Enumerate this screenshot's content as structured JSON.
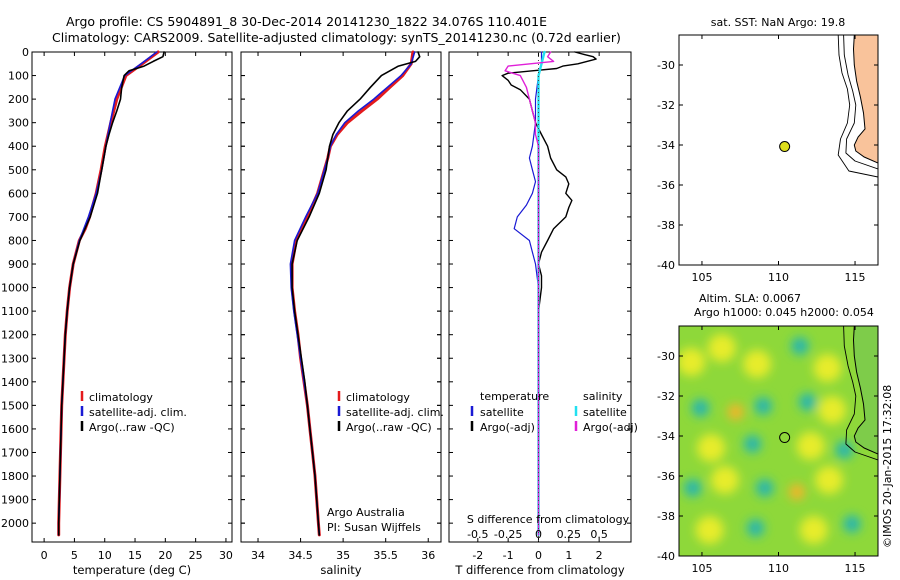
{
  "figure": {
    "title_line1": "Argo profile: CS 5904891_8 30-Dec-2014 20141230_1822 34.076S 110.401E",
    "title_line2": "Climatology: CARS2009. Satellite-adjusted climatology: synTS_20141230.nc (0.72d earlier)",
    "watermark": "©IMOS 20-Jan-2015 17:32:08",
    "ocean_color": "#ffffff",
    "land_color": "#f9c39b"
  },
  "chart_data": [
    {
      "id": "temperature",
      "type": "line",
      "xlabel": "temperature (deg C)",
      "ylabel": "",
      "xlim": [
        -2,
        31
      ],
      "ylim": [
        2080,
        0
      ],
      "xticks": [
        0,
        5,
        10,
        15,
        20,
        25,
        30
      ],
      "yticks": [
        0,
        100,
        200,
        300,
        400,
        500,
        600,
        700,
        800,
        900,
        1000,
        1100,
        1200,
        1300,
        1400,
        1500,
        1600,
        1700,
        1800,
        1900,
        2000
      ],
      "legend": [
        "climatology",
        "satellite-adj. clim.",
        "Argo(..raw -QC)"
      ],
      "series": [
        {
          "name": "climatology",
          "color": "#e41a1c",
          "width": 3,
          "depth": [
            0,
            50,
            100,
            200,
            300,
            400,
            500,
            600,
            700,
            750,
            800,
            900,
            1000,
            1100,
            1200,
            1300,
            1400,
            1500,
            1600,
            1700,
            1800,
            1900,
            2000,
            2050
          ],
          "values": [
            18.8,
            16.2,
            13.5,
            12.0,
            11.0,
            10.1,
            9.4,
            8.6,
            7.5,
            6.8,
            5.8,
            4.8,
            4.2,
            3.8,
            3.5,
            3.3,
            3.1,
            2.9,
            2.8,
            2.7,
            2.6,
            2.5,
            2.4,
            2.4
          ]
        },
        {
          "name": "satellite-adj. clim.",
          "color": "#1a1ad4",
          "width": 1.6,
          "depth": [
            0,
            50,
            100,
            200,
            300,
            400,
            500,
            600,
            700,
            800,
            900,
            1000,
            1100,
            1200,
            1300,
            1400,
            1500,
            1600,
            1700,
            1800,
            1900,
            2000,
            2050
          ],
          "values": [
            18.6,
            16.0,
            13.3,
            11.7,
            10.9,
            10.2,
            9.5,
            8.6,
            7.3,
            5.8,
            4.8,
            4.2,
            3.8,
            3.5,
            3.3,
            3.1,
            2.9,
            2.8,
            2.7,
            2.6,
            2.5,
            2.4,
            2.4
          ]
        },
        {
          "name": "Argo(..raw -QC)",
          "color": "#000000",
          "width": 1.6,
          "depth": [
            0,
            20,
            40,
            60,
            80,
            100,
            150,
            200,
            250,
            300,
            350,
            400,
            500,
            600,
            700,
            800,
            900,
            1000,
            1100,
            1200,
            1300,
            1400,
            1500,
            1600,
            1700,
            1800,
            1900,
            2000,
            2050
          ],
          "values": [
            19.8,
            19.6,
            18.0,
            16.5,
            14.0,
            13.2,
            12.8,
            12.6,
            12.0,
            11.3,
            10.7,
            10.2,
            9.5,
            8.8,
            7.6,
            5.9,
            4.8,
            4.2,
            3.8,
            3.5,
            3.3,
            3.1,
            2.9,
            2.8,
            2.7,
            2.6,
            2.5,
            2.4,
            2.4
          ]
        }
      ]
    },
    {
      "id": "salinity",
      "type": "line",
      "xlabel": "salinity",
      "ylabel": "",
      "xlim": [
        33.8,
        36.15
      ],
      "ylim": [
        2080,
        0
      ],
      "xticks": [
        34,
        34.5,
        35,
        35.5,
        36
      ],
      "yticks": [
        0,
        100,
        200,
        300,
        400,
        500,
        600,
        700,
        800,
        900,
        1000,
        1100,
        1200,
        1300,
        1400,
        1500,
        1600,
        1700,
        1800,
        1900,
        2000
      ],
      "legend": [
        "climatology",
        "satellite-adj. clim.",
        "Argo(..raw -QC)"
      ],
      "annotation": [
        "Argo Australia",
        "PI: Susan Wijffels"
      ],
      "series": [
        {
          "name": "climatology",
          "color": "#e41a1c",
          "width": 3,
          "depth": [
            0,
            50,
            100,
            150,
            200,
            250,
            300,
            350,
            400,
            450,
            500,
            600,
            700,
            800,
            900,
            1000,
            1100,
            1200,
            1300,
            1400,
            1500,
            1600,
            1700,
            1800,
            1900,
            2000,
            2050
          ],
          "values": [
            35.82,
            35.8,
            35.7,
            35.55,
            35.4,
            35.22,
            35.05,
            34.93,
            34.85,
            34.82,
            34.78,
            34.7,
            34.58,
            34.45,
            34.4,
            34.4,
            34.43,
            34.47,
            34.5,
            34.54,
            34.58,
            34.61,
            34.64,
            34.67,
            34.69,
            34.71,
            34.72
          ]
        },
        {
          "name": "satellite-adj. clim.",
          "color": "#1a1ad4",
          "width": 1.6,
          "depth": [
            0,
            50,
            100,
            150,
            200,
            250,
            300,
            350,
            400,
            450,
            500,
            600,
            700,
            800,
            900,
            1000,
            1100,
            1200,
            1300,
            1400,
            1500,
            1600,
            1700,
            1800,
            1900,
            2000,
            2050
          ],
          "values": [
            35.84,
            35.8,
            35.68,
            35.52,
            35.36,
            35.18,
            35.02,
            34.92,
            34.85,
            34.82,
            34.78,
            34.7,
            34.56,
            34.43,
            34.38,
            34.39,
            34.42,
            34.46,
            34.5,
            34.54,
            34.58,
            34.61,
            34.64,
            34.67,
            34.69,
            34.71,
            34.72
          ]
        },
        {
          "name": "Argo(..raw -QC)",
          "color": "#000000",
          "width": 1.6,
          "depth": [
            0,
            20,
            40,
            60,
            80,
            100,
            150,
            200,
            250,
            300,
            350,
            400,
            450,
            500,
            600,
            700,
            800,
            900,
            1000,
            1100,
            1200,
            1300,
            1400,
            1500,
            1600,
            1700,
            1800,
            1900,
            2000,
            2050
          ],
          "values": [
            35.88,
            35.9,
            35.85,
            35.65,
            35.55,
            35.45,
            35.32,
            35.2,
            35.05,
            34.95,
            34.88,
            34.84,
            34.82,
            34.8,
            34.72,
            34.6,
            34.46,
            34.4,
            34.4,
            34.43,
            34.47,
            34.51,
            34.55,
            34.58,
            34.61,
            34.64,
            34.67,
            34.69,
            34.71,
            34.72
          ]
        }
      ]
    },
    {
      "id": "differences",
      "type": "line",
      "xlabel": "T difference from climatology",
      "xlabel_top": "S difference from climatology",
      "xlim": [
        -2.95,
        3.05
      ],
      "ylim": [
        2080,
        0
      ],
      "xticks": [
        -2,
        -1,
        0,
        1,
        2
      ],
      "top_tick_labels": [
        "-0.5",
        "-0.25",
        "0",
        "0.25",
        "0.5"
      ],
      "top_tick_positions": [
        -2,
        -1,
        0,
        1,
        2
      ],
      "legend_temperature": {
        "title": "temperature",
        "items": [
          "satellite",
          "Argo(-adj)"
        ]
      },
      "legend_salinity": {
        "title": "salinity",
        "items": [
          "satellite",
          "Argo(-adj)"
        ]
      },
      "series": [
        {
          "name": "T satellite",
          "color": "#1a1ad4",
          "width": 1.2,
          "depth": [
            0,
            50,
            100,
            200,
            300,
            400,
            450,
            500,
            550,
            600,
            650,
            700,
            750,
            800,
            850,
            900,
            1000,
            1200,
            1500,
            2000,
            2050
          ],
          "values": [
            0.1,
            0.1,
            0.0,
            -0.1,
            -0.1,
            -0.2,
            -0.3,
            -0.2,
            -0.1,
            -0.2,
            -0.4,
            -0.7,
            -0.8,
            -0.3,
            -0.2,
            -0.1,
            0.0,
            0.0,
            0.0,
            0.0,
            0.0
          ]
        },
        {
          "name": "T Argo(-adj)",
          "color": "#000000",
          "width": 1.4,
          "depth": [
            0,
            10,
            20,
            30,
            40,
            50,
            60,
            70,
            80,
            90,
            100,
            120,
            140,
            160,
            200,
            250,
            300,
            350,
            400,
            450,
            500,
            530,
            560,
            600,
            630,
            660,
            700,
            750,
            800,
            850,
            900,
            950,
            1000,
            1100,
            1200,
            1400,
            1600,
            1800,
            2000,
            2050
          ],
          "values": [
            1.2,
            1.5,
            1.8,
            1.9,
            1.6,
            1.3,
            0.8,
            0.6,
            -0.2,
            -1.0,
            -1.2,
            -1.0,
            -0.9,
            -0.6,
            -0.3,
            -0.2,
            -0.1,
            0.1,
            0.3,
            0.4,
            0.6,
            0.9,
            1.0,
            0.9,
            1.1,
            1.0,
            0.9,
            0.5,
            0.3,
            0.1,
            0.0,
            0.1,
            0.1,
            0.0,
            0.0,
            0.0,
            0.0,
            0.0,
            0.0,
            0.0
          ]
        },
        {
          "name": "S satellite",
          "color": "#22e0f0",
          "width": 2.4,
          "depth": [
            0,
            50,
            100,
            200,
            300,
            400,
            500,
            600,
            700,
            800,
            900,
            1000,
            1200,
            1500,
            2000,
            2050
          ],
          "values": [
            0.2,
            0.1,
            0.0,
            0.0,
            0.0,
            0.0,
            0.0,
            0.0,
            0.0,
            0.0,
            0.0,
            0.0,
            0.0,
            0.0,
            0.0,
            0.0
          ]
        },
        {
          "name": "S Argo(-adj)",
          "color": "#e020d8",
          "width": 1.4,
          "depth": [
            0,
            20,
            40,
            60,
            80,
            100,
            150,
            200,
            250,
            300,
            350,
            400,
            500,
            600,
            700,
            800,
            900,
            1000,
            1200,
            1400,
            1600,
            1800,
            2000,
            2050
          ],
          "values": [
            0.4,
            0.3,
            0.5,
            -1.0,
            -1.1,
            -0.6,
            -0.4,
            -0.3,
            -0.2,
            -0.1,
            -0.1,
            0.0,
            0.0,
            0.0,
            0.0,
            0.0,
            0.0,
            0.0,
            0.0,
            0.0,
            0.0,
            0.0,
            0.0,
            0.0
          ]
        }
      ]
    },
    {
      "id": "sst_map",
      "type": "scatter",
      "title": "sat. SST: NaN Argo: 19.8",
      "xlim": [
        103.5,
        116.5
      ],
      "ylim": [
        -40,
        -28.5
      ],
      "xticks": [
        105,
        110,
        115
      ],
      "yticks": [
        -40,
        -38,
        -36,
        -34,
        -32,
        -30
      ],
      "marker": {
        "lon": 110.401,
        "lat": -34.076,
        "color": "#dede1c"
      }
    },
    {
      "id": "sla_map",
      "type": "heatmap",
      "title_line1": "Altim. SLA: 0.0067",
      "title_line2": "Argo h1000: 0.045 h2000: 0.054",
      "xlim": [
        103.5,
        116.5
      ],
      "ylim": [
        -40,
        -28.5
      ],
      "xticks": [
        105,
        110,
        115
      ],
      "yticks": [
        -40,
        -38,
        -36,
        -34,
        -32,
        -30
      ],
      "marker": {
        "lon": 110.401,
        "lat": -34.076
      },
      "base_color": "#8ed83a",
      "blobs": [
        {
          "lon": 104.3,
          "lat": -30.3,
          "kind": "yellow"
        },
        {
          "lon": 106.3,
          "lat": -29.6,
          "kind": "yellow"
        },
        {
          "lon": 108.6,
          "lat": -30.4,
          "kind": "yellow"
        },
        {
          "lon": 111.4,
          "lat": -29.5,
          "kind": "cyan"
        },
        {
          "lon": 113.2,
          "lat": -30.6,
          "kind": "yellow"
        },
        {
          "lon": 104.9,
          "lat": -32.6,
          "kind": "cyan"
        },
        {
          "lon": 107.2,
          "lat": -32.8,
          "kind": "orange"
        },
        {
          "lon": 109.0,
          "lat": -32.5,
          "kind": "cyan"
        },
        {
          "lon": 111.9,
          "lat": -32.3,
          "kind": "cyan"
        },
        {
          "lon": 113.5,
          "lat": -32.7,
          "kind": "yellow"
        },
        {
          "lon": 105.6,
          "lat": -34.6,
          "kind": "yellow"
        },
        {
          "lon": 108.3,
          "lat": -34.4,
          "kind": "cyan"
        },
        {
          "lon": 112.1,
          "lat": -34.5,
          "kind": "yellow"
        },
        {
          "lon": 114.3,
          "lat": -34.7,
          "kind": "cyan"
        },
        {
          "lon": 104.4,
          "lat": -36.6,
          "kind": "cyan"
        },
        {
          "lon": 106.5,
          "lat": -36.2,
          "kind": "yellow"
        },
        {
          "lon": 109.1,
          "lat": -36.6,
          "kind": "cyan"
        },
        {
          "lon": 111.2,
          "lat": -36.8,
          "kind": "orange"
        },
        {
          "lon": 113.3,
          "lat": -36.2,
          "kind": "yellow"
        },
        {
          "lon": 105.5,
          "lat": -38.7,
          "kind": "yellow"
        },
        {
          "lon": 108.5,
          "lat": -38.6,
          "kind": "cyan"
        },
        {
          "lon": 112.3,
          "lat": -38.7,
          "kind": "yellow"
        },
        {
          "lon": 114.8,
          "lat": -38.4,
          "kind": "cyan"
        }
      ]
    }
  ]
}
